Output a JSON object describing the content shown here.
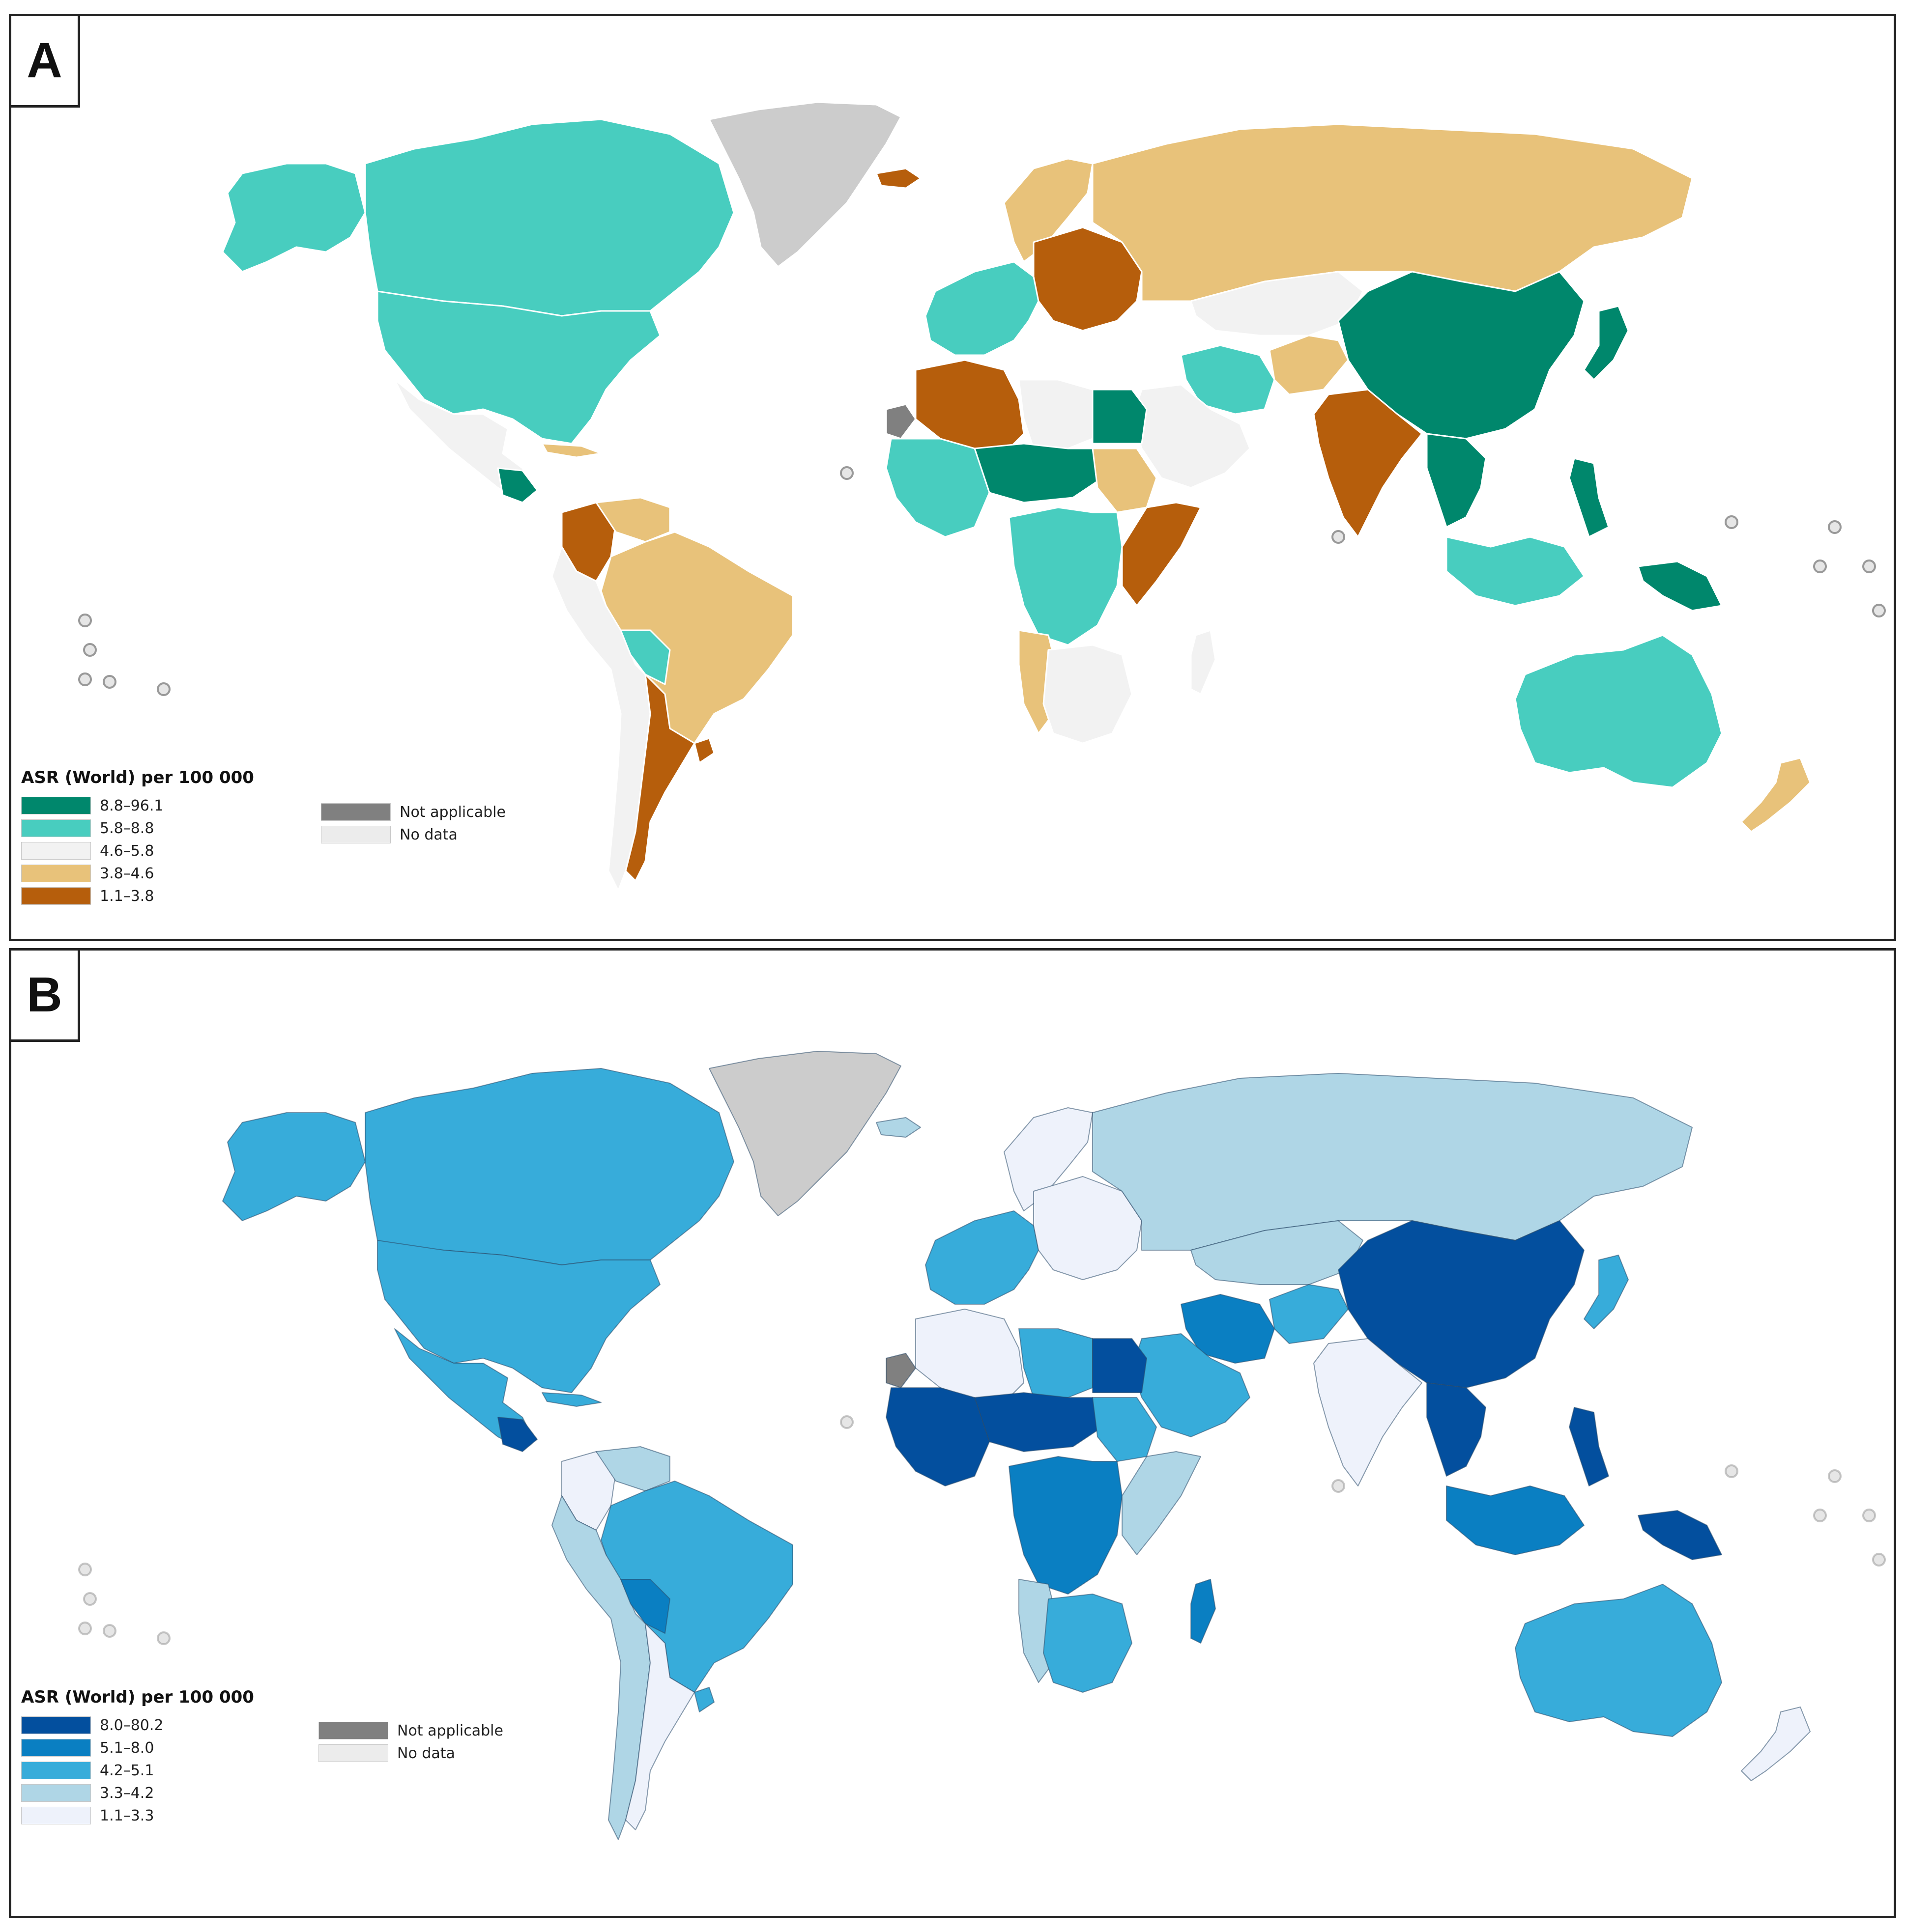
{
  "panels": [
    {
      "label": "A",
      "legend_title": "ASR (World) per 100 000",
      "classes": [
        {
          "range": "8.8–96.1",
          "color": "#00876c"
        },
        {
          "range": "5.8–8.8",
          "color": "#48cdbf"
        },
        {
          "range": "4.6–5.8",
          "color": "#f2f2f2"
        },
        {
          "range": "3.8–4.6",
          "color": "#e8c27a"
        },
        {
          "range": "1.1–3.8",
          "color": "#b65e0c"
        }
      ],
      "special": [
        {
          "label": "Not applicable",
          "color": "#808080"
        },
        {
          "label": "No data",
          "color": "#ececec"
        }
      ]
    },
    {
      "label": "B",
      "legend_title": "ASR (World) per 100 000",
      "classes": [
        {
          "range": "8.0–80.2",
          "color": "#034f9e"
        },
        {
          "range": "5.1–8.0",
          "color": "#0a7fc2"
        },
        {
          "range": "4.2–5.1",
          "color": "#37acda"
        },
        {
          "range": "3.3–4.2",
          "color": "#afd6e6"
        },
        {
          "range": "1.1–3.3",
          "color": "#eef2fb"
        }
      ],
      "special": [
        {
          "label": "Not applicable",
          "color": "#808080"
        },
        {
          "label": "No data",
          "color": "#ececec"
        }
      ]
    }
  ],
  "regions": {
    "a": {
      "greenland": "#cccccc",
      "canada": "#48cdbf",
      "usa": "#48cdbf",
      "alaska": "#48cdbf",
      "mexico_central": "#f2f2f2",
      "guatemala": "#00876c",
      "cuba": "#e8c27a",
      "colombia": "#b65e0c",
      "venezuela": "#e8c27a",
      "brazil": "#e8c27a",
      "peru_chile": "#f2f2f2",
      "bolivia": "#48cdbf",
      "argentina": "#b65e0c",
      "uruguay": "#b65e0c",
      "iceland": "#b65e0c",
      "western_europe": "#48cdbf",
      "eastern_europe": "#b65e0c",
      "scandinavia": "#e8c27a",
      "russia": "#e8c27a",
      "kazakhstan": "#f2f2f2",
      "china": "#00876c",
      "japan": "#00876c",
      "india": "#b65e0c",
      "iran": "#48cdbf",
      "arabia": "#f2f2f2",
      "afghanistan": "#e8c27a",
      "north_africa_west": "#b65e0c",
      "libya": "#f2f2f2",
      "egypt": "#00876c",
      "sahel": "#00876c",
      "west_africa": "#48cdbf",
      "sudan": "#e8c27a",
      "central_africa": "#48cdbf",
      "east_africa": "#b65e0c",
      "southern_africa": "#f2f2f2",
      "angola_namibia": "#e8c27a",
      "madagascar": "#f2f2f2",
      "se_asia": "#00876c",
      "indonesia": "#48cdbf",
      "philippines": "#00876c",
      "png": "#00876c",
      "australia": "#48cdbf",
      "new_zealand": "#e8c27a",
      "western_sahara": "#808080"
    },
    "b": {
      "greenland": "#cccccc",
      "canada": "#37acda",
      "usa": "#37acda",
      "alaska": "#37acda",
      "mexico_central": "#37acda",
      "guatemala": "#034f9e",
      "cuba": "#37acda",
      "colombia": "#eef2fb",
      "venezuela": "#afd6e6",
      "brazil": "#37acda",
      "peru_chile": "#afd6e6",
      "bolivia": "#0a7fc2",
      "argentina": "#eef2fb",
      "uruguay": "#37acda",
      "iceland": "#afd6e6",
      "western_europe": "#37acda",
      "eastern_europe": "#eef2fb",
      "scandinavia": "#eef2fb",
      "russia": "#afd6e6",
      "kazakhstan": "#afd6e6",
      "china": "#034f9e",
      "japan": "#37acda",
      "india": "#eef2fb",
      "iran": "#0a7fc2",
      "arabia": "#37acda",
      "afghanistan": "#37acda",
      "north_africa_west": "#eef2fb",
      "libya": "#37acda",
      "egypt": "#034f9e",
      "sahel": "#034f9e",
      "west_africa": "#034f9e",
      "sudan": "#37acda",
      "central_africa": "#0a7fc2",
      "east_africa": "#afd6e6",
      "southern_africa": "#37acda",
      "angola_namibia": "#afd6e6",
      "madagascar": "#0a7fc2",
      "se_asia": "#034f9e",
      "indonesia": "#0a7fc2",
      "philippines": "#034f9e",
      "png": "#034f9e",
      "australia": "#37acda",
      "new_zealand": "#eef2fb",
      "western_sahara": "#808080"
    }
  }
}
